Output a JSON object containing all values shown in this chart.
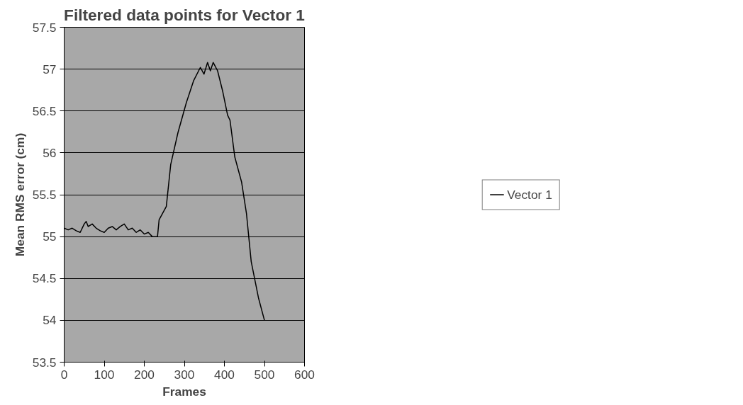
{
  "chart_data": {
    "type": "line",
    "title": "Filtered data points for Vector 1",
    "xlabel": "Frames",
    "ylabel": "Mean RMS error (cm)",
    "x": [
      0,
      10,
      20,
      30,
      40,
      50,
      55,
      60,
      70,
      80,
      90,
      100,
      110,
      120,
      130,
      140,
      150,
      160,
      170,
      180,
      190,
      200,
      210,
      220,
      233,
      237,
      255,
      266,
      284,
      305,
      323,
      340,
      349,
      358,
      365,
      372,
      383,
      396,
      408,
      414,
      426,
      443,
      455,
      467,
      485,
      500
    ],
    "series": [
      {
        "name": "Vector 1",
        "color": "#000000",
        "values": [
          55.1,
          55.08,
          55.1,
          55.07,
          55.05,
          55.15,
          55.18,
          55.12,
          55.15,
          55.1,
          55.07,
          55.05,
          55.1,
          55.12,
          55.08,
          55.12,
          55.15,
          55.08,
          55.1,
          55.05,
          55.08,
          55.03,
          55.05,
          55.0,
          55.0,
          55.2,
          55.36,
          55.86,
          56.24,
          56.6,
          56.86,
          57.02,
          56.94,
          57.08,
          56.98,
          57.08,
          56.98,
          56.73,
          56.45,
          56.39,
          55.95,
          55.65,
          55.28,
          54.7,
          54.27,
          54.0
        ]
      }
    ],
    "xlim": [
      0,
      600
    ],
    "xticks": [
      0,
      100,
      200,
      300,
      400,
      500,
      600
    ],
    "ylim": [
      53.5,
      57.5
    ],
    "yticks": [
      53.5,
      54,
      54.5,
      55,
      55.5,
      56,
      56.5,
      57,
      57.5
    ],
    "grid": "y",
    "legend": "right",
    "marker": "none",
    "line_style": "solid"
  }
}
